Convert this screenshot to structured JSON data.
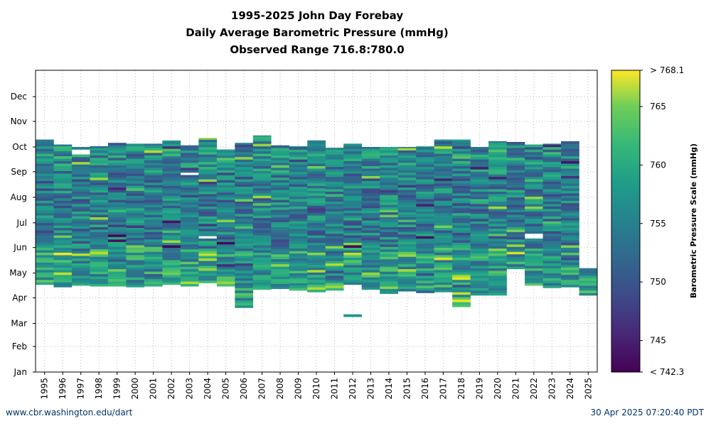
{
  "titles": [
    "1995-2025 John Day Forebay",
    "Daily Average Barometric Pressure (mmHg)",
    "Observed Range 716.8:780.0"
  ],
  "footer": {
    "left": "www.cbr.washington.edu/dart",
    "right": "30 Apr 2025 07:20:40 PDT"
  },
  "chart_data": {
    "type": "heatmap",
    "title": "1995-2025 John Day Forebay",
    "subtitle": "Daily Average Barometric Pressure (mmHg)",
    "note": "Observed Range 716.8:780.0",
    "x": [
      "1995",
      "1996",
      "1997",
      "1998",
      "1999",
      "2000",
      "2001",
      "2002",
      "2003",
      "2004",
      "2005",
      "2006",
      "2007",
      "2008",
      "2009",
      "2010",
      "2011",
      "2012",
      "2013",
      "2014",
      "2015",
      "2016",
      "2017",
      "2018",
      "2019",
      "2020",
      "2021",
      "2022",
      "2023",
      "2024",
      "2025"
    ],
    "y_ticks": [
      "Jan",
      "Feb",
      "Mar",
      "Apr",
      "May",
      "Jun",
      "Jul",
      "Aug",
      "Sep",
      "Oct",
      "Nov",
      "Dec"
    ],
    "ylabel": "",
    "xlabel": "",
    "colorbar": {
      "label": "Barometric Pressure Scale (mmHg)",
      "min": 742.3,
      "max": 768.1,
      "ticks": [
        745,
        750,
        755,
        760,
        765
      ],
      "min_label": "< 742.3",
      "max_label": "> 768.1",
      "colormap": "viridis"
    },
    "grid": true,
    "coverage_day_of_year": [
      [
        106,
        282
      ],
      [
        103,
        276
      ],
      [
        105,
        273
      ],
      [
        104,
        274
      ],
      [
        104,
        278
      ],
      [
        103,
        277
      ],
      [
        104,
        277
      ],
      [
        106,
        281
      ],
      [
        104,
        275
      ],
      [
        105,
        284
      ],
      [
        104,
        270
      ],
      [
        78,
        278
      ],
      [
        100,
        287
      ],
      [
        101,
        275
      ],
      [
        99,
        274
      ],
      [
        97,
        281
      ],
      [
        99,
        272
      ],
      [
        67,
        277
      ],
      [
        100,
        273
      ],
      [
        95,
        273
      ],
      [
        98,
        273
      ],
      [
        96,
        274
      ],
      [
        97,
        282
      ],
      [
        79,
        282
      ],
      [
        93,
        273
      ],
      [
        93,
        280
      ],
      [
        104,
        279
      ],
      [
        105,
        276
      ],
      [
        102,
        277
      ],
      [
        103,
        280
      ],
      [
        93,
        126
      ]
    ],
    "gaps_day_of_year": [
      [
        1996,
        104,
        106
      ],
      [
        1997,
        263,
        268
      ],
      [
        2003,
        239,
        241
      ],
      [
        2004,
        104,
        106
      ],
      [
        2004,
        161,
        163
      ],
      [
        2012,
        69,
        104
      ],
      [
        2021,
        104,
        125
      ],
      [
        2022,
        160,
        166
      ]
    ]
  }
}
